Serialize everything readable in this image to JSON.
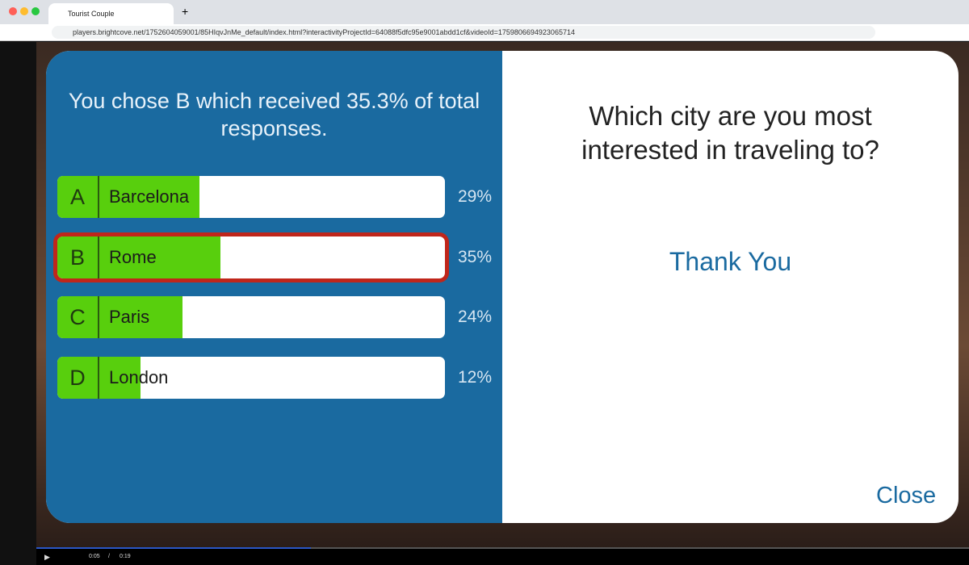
{
  "browser": {
    "tab_title": "Tourist Couple",
    "url": "players.brightcove.net/1752604059001/85HIqvJnMe_default/index.html?interactivityProjectId=64088f5dfc95e9001abdd1cf&videoId=1759806694923065714"
  },
  "poll": {
    "result_text": "You chose B which received 35.3% of total responses.",
    "question": "Which city are you most interested in traveling to?",
    "thanks": "Thank You",
    "close": "Close",
    "selected": 1,
    "options": [
      {
        "letter": "A",
        "label": "Barcelona",
        "value": 29,
        "value_label": "29%"
      },
      {
        "letter": "B",
        "label": "Rome",
        "value": 35,
        "value_label": "35%"
      },
      {
        "letter": "C",
        "label": "Paris",
        "value": 24,
        "value_label": "24%"
      },
      {
        "letter": "D",
        "label": "London",
        "value": 12,
        "value_label": "12%"
      }
    ]
  },
  "player": {
    "current_time": "0:05",
    "separator": "/",
    "duration": "0:19"
  }
}
